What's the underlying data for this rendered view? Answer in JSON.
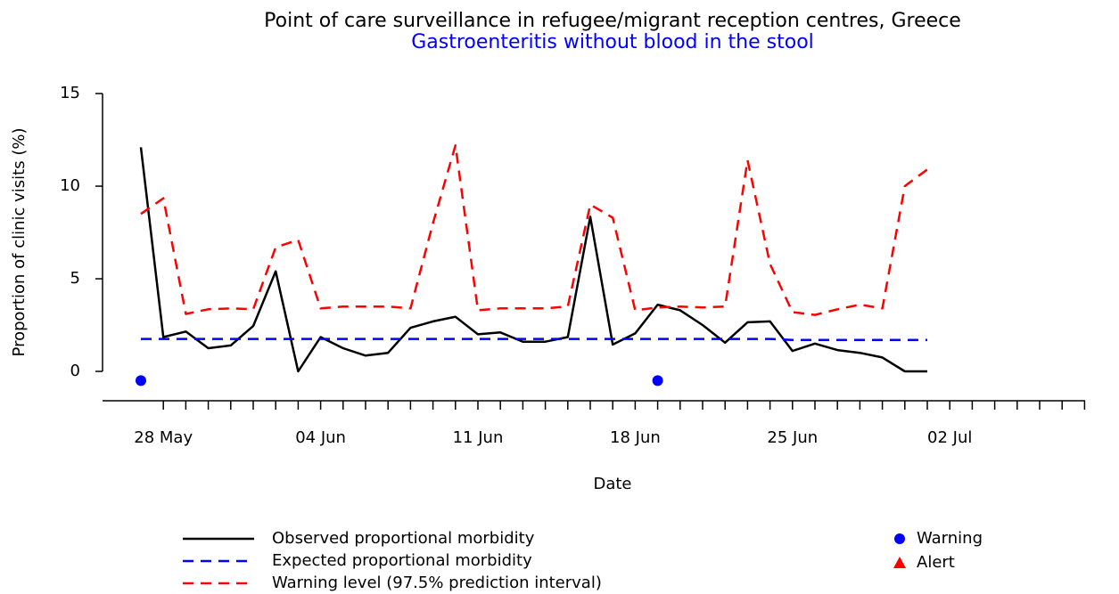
{
  "chart_data": {
    "type": "line",
    "title": "Point of care surveillance in refugee/migrant reception centres, Greece",
    "subtitle": "Gastroenteritis without blood in the stool",
    "x_label": "Date",
    "y_label": "Proportion of clinic visits (%)",
    "categories": [
      null,
      "28 May",
      null,
      null,
      null,
      null,
      null,
      null,
      "04 Jun",
      null,
      null,
      null,
      null,
      null,
      null,
      "11 Jun",
      null,
      null,
      null,
      null,
      null,
      null,
      "18 Jun",
      null,
      null,
      null,
      null,
      null,
      null,
      "25 Jun",
      null,
      null,
      null,
      null,
      null,
      null,
      "02 Jul",
      null,
      null,
      null,
      null,
      null,
      null
    ],
    "ylim": [
      -1.6,
      15.3
    ],
    "yticks": [
      0,
      5,
      10,
      15
    ],
    "series": [
      {
        "name": "Observed proportional morbidity",
        "color": "#000000",
        "style": "solid",
        "values": [
          12.1,
          1.85,
          2.15,
          1.25,
          1.4,
          2.45,
          5.4,
          0,
          1.85,
          1.25,
          0.85,
          1.0,
          2.35,
          2.7,
          2.95,
          2.0,
          2.1,
          1.6,
          1.6,
          1.85,
          8.35,
          1.45,
          2.05,
          3.6,
          3.3,
          2.5,
          1.55,
          2.65,
          2.7,
          1.1,
          1.5,
          1.15,
          1.0,
          0.75,
          0,
          0,
          null,
          null,
          null,
          null,
          null,
          null,
          null
        ]
      },
      {
        "name": "Expected proportional morbidity",
        "color": "#0000ff",
        "style": "dashed",
        "values": [
          1.75,
          1.75,
          1.75,
          1.75,
          1.75,
          1.75,
          1.75,
          1.75,
          1.75,
          1.75,
          1.75,
          1.75,
          1.75,
          1.75,
          1.75,
          1.75,
          1.75,
          1.75,
          1.75,
          1.75,
          1.75,
          1.75,
          1.75,
          1.75,
          1.75,
          1.75,
          1.75,
          1.75,
          1.75,
          1.7,
          1.7,
          1.7,
          1.7,
          1.7,
          1.7,
          1.7,
          null,
          null,
          null,
          null,
          null,
          null,
          null
        ]
      },
      {
        "name": "Warning level (97.5% prediction interval)",
        "color": "#ff0000",
        "style": "dashed",
        "values": [
          8.5,
          9.35,
          3.1,
          3.35,
          3.4,
          3.35,
          6.7,
          7.1,
          3.4,
          3.5,
          3.5,
          3.5,
          3.4,
          8.0,
          12.2,
          3.3,
          3.4,
          3.4,
          3.4,
          3.5,
          9.0,
          8.3,
          3.3,
          3.45,
          3.5,
          3.45,
          3.5,
          11.4,
          5.8,
          3.2,
          3.05,
          3.35,
          3.6,
          3.4,
          10.0,
          10.9,
          null,
          null,
          null,
          null,
          null,
          null,
          null
        ]
      },
      {
        "name": "Warning",
        "color": "#0000ff",
        "marker": "circle",
        "values": [
          -0.5,
          null,
          null,
          null,
          null,
          null,
          null,
          null,
          null,
          null,
          null,
          null,
          null,
          null,
          null,
          null,
          null,
          null,
          null,
          null,
          null,
          null,
          null,
          -0.5,
          null,
          null,
          null,
          null,
          null,
          null,
          null,
          null,
          null,
          null,
          null,
          null,
          null,
          null,
          null,
          null,
          null,
          null,
          null
        ]
      },
      {
        "name": "Alert",
        "color": "#ff0000",
        "marker": "triangle",
        "values": [
          null,
          null,
          null,
          null,
          null,
          null,
          null,
          null,
          null,
          null,
          null,
          null,
          null,
          null,
          null,
          null,
          null,
          null,
          null,
          null,
          null,
          null,
          null,
          null,
          null,
          null,
          null,
          null,
          null,
          null,
          null,
          null,
          null,
          null,
          null,
          null,
          null,
          null,
          null,
          null,
          null,
          null,
          null
        ]
      }
    ]
  }
}
